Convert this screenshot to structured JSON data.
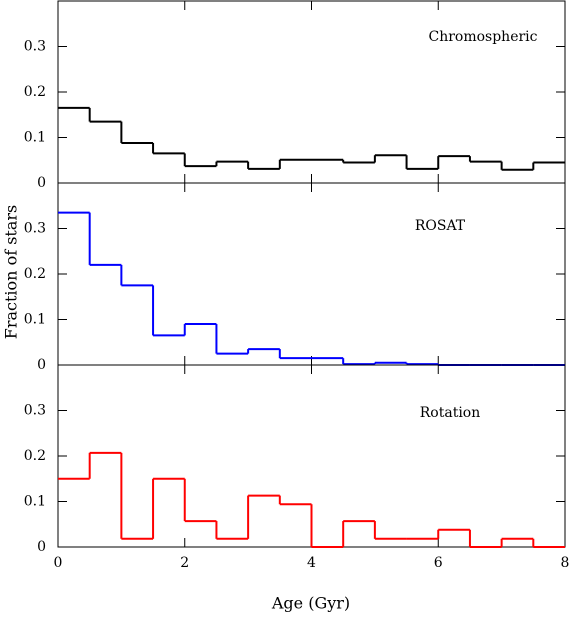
{
  "chart_data": [
    {
      "type": "histogram",
      "label": "Chromospheric",
      "color": "#000000",
      "bins": [
        0,
        0.5,
        1,
        1.5,
        2,
        2.5,
        3,
        3.5,
        4,
        4.5,
        5,
        5.5,
        6,
        6.5,
        7,
        7.5,
        8
      ],
      "values": [
        0.165,
        0.135,
        0.088,
        0.065,
        0.037,
        0.047,
        0.031,
        0.051,
        0.051,
        0.045,
        0.061,
        0.031,
        0.059,
        0.047,
        0.029,
        0.045
      ],
      "xlim": [
        0,
        8
      ],
      "ylim": [
        0,
        0.4
      ],
      "yticks": [
        0,
        0.1,
        0.2,
        0.3
      ]
    },
    {
      "type": "histogram",
      "label": "ROSAT",
      "color": "#0000ff",
      "ylabel": "Fraction of stars",
      "bins": [
        0,
        0.5,
        1,
        1.5,
        2,
        2.5,
        3,
        3.5,
        4,
        4.5,
        5,
        5.5,
        6,
        6.5,
        7,
        7.5,
        8
      ],
      "values": [
        0.335,
        0.22,
        0.175,
        0.065,
        0.09,
        0.025,
        0.035,
        0.015,
        0.015,
        0.002,
        0.005,
        0.002,
        0,
        0,
        0,
        0
      ],
      "xlim": [
        0,
        8
      ],
      "ylim": [
        0,
        0.4
      ],
      "yticks": [
        0,
        0.1,
        0.2,
        0.3
      ]
    },
    {
      "type": "histogram",
      "label": "Rotation",
      "color": "#ff0000",
      "xlabel": "Age (Gyr)",
      "bins": [
        0,
        0.5,
        1,
        1.5,
        2,
        2.5,
        3,
        3.5,
        4,
        4.5,
        5,
        5.5,
        6,
        6.5,
        7,
        7.5,
        8
      ],
      "values": [
        0.15,
        0.207,
        0.018,
        0.15,
        0.057,
        0.018,
        0.113,
        0.094,
        0,
        0.057,
        0.018,
        0.018,
        0.038,
        0,
        0.018,
        0
      ],
      "xlim": [
        0,
        8
      ],
      "ylim": [
        0,
        0.4
      ],
      "yticks": [
        0,
        0.1,
        0.2,
        0.3
      ],
      "xticks": [
        0,
        2,
        4,
        6,
        8
      ]
    }
  ]
}
